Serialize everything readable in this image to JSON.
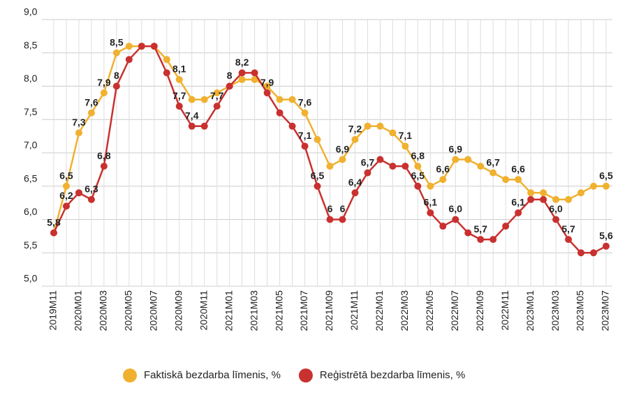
{
  "chart_data": {
    "type": "line",
    "categories": [
      "2019M11",
      null,
      "2020M01",
      null,
      "2020M03",
      null,
      "2020M05",
      null,
      "2020M07",
      null,
      "2020M09",
      null,
      "2020M11",
      null,
      "2021M01",
      null,
      "2021M03",
      null,
      "2021M05",
      null,
      "2021M07",
      null,
      "2021M09",
      null,
      "2021M11",
      null,
      "2022M01",
      null,
      "2022M03",
      null,
      "2022M05",
      null,
      "2022M07",
      null,
      "2022M09",
      null,
      "2022M11",
      null,
      "2023M01",
      null,
      "2023M03",
      null,
      "2023M05",
      null,
      "2023M07"
    ],
    "series": [
      {
        "name": "Faktiskā bezdarba līmenis, %",
        "color": "#f0b130",
        "values": [
          5.8,
          6.5,
          7.3,
          7.6,
          7.9,
          8.5,
          8.6,
          8.6,
          8.6,
          8.4,
          8.1,
          7.8,
          7.8,
          7.9,
          8.0,
          8.1,
          8.1,
          8.0,
          7.8,
          7.8,
          7.6,
          7.2,
          6.8,
          6.9,
          7.2,
          7.4,
          7.4,
          7.3,
          7.1,
          6.8,
          6.5,
          6.6,
          6.9,
          6.9,
          6.8,
          6.7,
          6.6,
          6.6,
          6.4,
          6.4,
          6.3,
          6.3,
          6.4,
          6.5,
          6.5
        ],
        "value_labels": [
          null,
          "6,5",
          "7,3",
          "7,6",
          "7,9",
          "8,5",
          null,
          null,
          null,
          null,
          "8,1",
          null,
          null,
          null,
          null,
          null,
          null,
          null,
          null,
          null,
          "7,6",
          null,
          null,
          "6,9",
          "7,2",
          null,
          null,
          null,
          "7,1",
          "6,8",
          null,
          "6,6",
          "6,9",
          null,
          null,
          "6,7",
          null,
          "6,6",
          null,
          null,
          null,
          null,
          null,
          null,
          "6,5"
        ]
      },
      {
        "name": "Reģistrētā bezdarba līmenis, %",
        "color": "#c8312f",
        "values": [
          5.8,
          6.2,
          6.4,
          6.3,
          6.8,
          8.0,
          8.4,
          8.6,
          8.6,
          8.2,
          7.7,
          7.4,
          7.4,
          7.7,
          8.0,
          8.2,
          8.2,
          7.9,
          7.6,
          7.4,
          7.1,
          6.5,
          6.0,
          6.0,
          6.4,
          6.7,
          6.9,
          6.8,
          6.8,
          6.5,
          6.1,
          5.9,
          6.0,
          5.8,
          5.7,
          5.7,
          5.9,
          6.1,
          6.3,
          6.3,
          6.0,
          5.7,
          5.5,
          5.5,
          5.6
        ],
        "value_labels": [
          "5,8",
          "6,2",
          null,
          "6,3",
          "6,8",
          "8",
          null,
          null,
          null,
          null,
          "7,7",
          "7,4",
          null,
          "7,7",
          "8",
          "8,2",
          null,
          "7,9",
          null,
          null,
          "7,1",
          "6,5",
          "6",
          "6",
          "6,4",
          "6,7",
          null,
          null,
          null,
          "6,5",
          "6,1",
          null,
          "6,0",
          null,
          "5,7",
          null,
          null,
          "6,1",
          null,
          null,
          "6,0",
          "5,7",
          null,
          null,
          "5,6"
        ]
      }
    ],
    "ylim": [
      5,
      9
    ],
    "yticks": [
      {
        "value": 5,
        "label": "5,0"
      },
      {
        "value": 5.5,
        "label": "5,5"
      },
      {
        "value": 6,
        "label": "6,0"
      },
      {
        "value": 6.5,
        "label": "6,5"
      },
      {
        "value": 7,
        "label": "7,0"
      },
      {
        "value": 7.5,
        "label": "7,5"
      },
      {
        "value": 8,
        "label": "8,0"
      },
      {
        "value": 8.5,
        "label": "8,5"
      },
      {
        "value": 9,
        "label": "9,0"
      }
    ],
    "grid": true,
    "legend": "bottom"
  }
}
